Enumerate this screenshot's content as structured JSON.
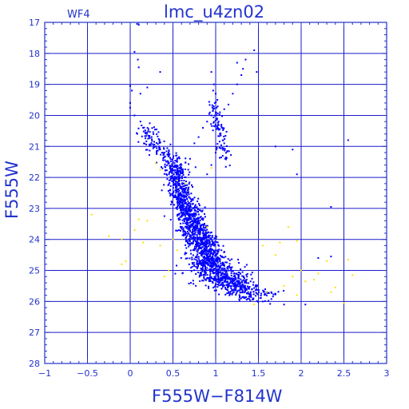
{
  "chart_data": {
    "type": "scatter",
    "title": "lmc_u4zn02",
    "subtitle": "WF4",
    "xlabel": "F555W−F814W",
    "ylabel": "F555W",
    "xlim": [
      -1,
      3
    ],
    "ylim": [
      28,
      17
    ],
    "y_inverted": true,
    "grid": true,
    "xticks": [
      -1,
      -0.5,
      0,
      0.5,
      1,
      1.5,
      2,
      2.5,
      3
    ],
    "xtick_labels": [
      "−1",
      "−0.5",
      "0",
      "0.5",
      "1",
      "1.5",
      "2",
      "2.5",
      "3"
    ],
    "yticks": [
      17,
      18,
      19,
      20,
      21,
      22,
      23,
      24,
      25,
      26,
      27,
      28
    ],
    "ytick_labels": [
      "17",
      "18",
      "19",
      "20",
      "21",
      "22",
      "23",
      "24",
      "25",
      "26",
      "27",
      "28"
    ],
    "colors": {
      "axes": "#2233cc",
      "grid": "#1a1acc",
      "main": "#0000ff",
      "secondary": "#ffe000"
    },
    "series": [
      {
        "color": "#0000ff",
        "points": [
          [
            0.08,
            17.05
          ],
          [
            0.1,
            17.08
          ],
          [
            0.05,
            17.95
          ],
          [
            0.09,
            18.2
          ],
          [
            0.1,
            18.45
          ],
          [
            0.0,
            19.05
          ],
          [
            0.02,
            19.2
          ],
          [
            0.12,
            19.3
          ],
          [
            0.2,
            19.1
          ],
          [
            0.35,
            18.6
          ],
          [
            0.95,
            18.6
          ],
          [
            0.98,
            19.0
          ],
          [
            0.97,
            19.2
          ],
          [
            1.0,
            19.3
          ],
          [
            1.02,
            19.5
          ],
          [
            0.99,
            19.6
          ],
          [
            1.01,
            19.75
          ],
          [
            1.05,
            19.9
          ],
          [
            1.1,
            19.8
          ],
          [
            1.15,
            19.65
          ],
          [
            1.2,
            19.3
          ],
          [
            1.25,
            19.0
          ],
          [
            1.3,
            18.7
          ],
          [
            1.32,
            18.5
          ],
          [
            1.35,
            18.2
          ],
          [
            1.25,
            18.3
          ],
          [
            1.45,
            17.9
          ],
          [
            1.48,
            18.6
          ],
          [
            0.0,
            19.6
          ],
          [
            0.0,
            19.75
          ],
          [
            0.05,
            20.0
          ],
          [
            0.12,
            20.2
          ],
          [
            0.15,
            20.4
          ],
          [
            0.2,
            20.55
          ],
          [
            0.25,
            20.7
          ],
          [
            0.28,
            20.85
          ],
          [
            0.3,
            21.0
          ],
          [
            0.35,
            21.1
          ],
          [
            0.4,
            21.2
          ],
          [
            0.45,
            21.3
          ],
          [
            0.55,
            21.5
          ],
          [
            0.6,
            21.6
          ],
          [
            0.7,
            21.4
          ],
          [
            0.75,
            20.9
          ],
          [
            0.8,
            20.7
          ],
          [
            0.85,
            20.4
          ],
          [
            0.9,
            20.2
          ],
          [
            0.95,
            20.0
          ],
          [
            1.0,
            20.3
          ],
          [
            1.05,
            20.6
          ],
          [
            1.1,
            20.9
          ],
          [
            1.0,
            21.2
          ],
          [
            0.95,
            21.6
          ],
          [
            0.9,
            21.9
          ],
          [
            1.9,
            21.1
          ],
          [
            1.95,
            21.9
          ],
          [
            2.55,
            20.8
          ],
          [
            2.35,
            22.95
          ],
          [
            1.7,
            21.0
          ],
          [
            0.4,
            23.25
          ],
          [
            1.55,
            26.0
          ],
          [
            1.8,
            26.1
          ],
          [
            2.05,
            26.1
          ],
          [
            2.2,
            24.6
          ],
          [
            2.35,
            24.55
          ],
          [
            1.65,
            25.7
          ]
        ],
        "cloud": {
          "description": "dense main-sequence region",
          "segments": [
            {
              "from": [
                0.52,
                21.6
              ],
              "to": [
                0.6,
                22.6
              ],
              "count": 260,
              "spread": [
                0.06,
                0.15
              ]
            },
            {
              "from": [
                0.6,
                22.6
              ],
              "to": [
                0.75,
                23.6
              ],
              "count": 380,
              "spread": [
                0.07,
                0.15
              ]
            },
            {
              "from": [
                0.72,
                23.6
              ],
              "to": [
                0.95,
                24.6
              ],
              "count": 450,
              "spread": [
                0.09,
                0.16
              ]
            },
            {
              "from": [
                0.85,
                24.6
              ],
              "to": [
                1.2,
                25.4
              ],
              "count": 420,
              "spread": [
                0.12,
                0.15
              ]
            },
            {
              "from": [
                1.0,
                25.2
              ],
              "to": [
                1.5,
                25.9
              ],
              "count": 280,
              "spread": [
                0.14,
                0.12
              ]
            },
            {
              "from": [
                0.15,
                20.4
              ],
              "to": [
                0.55,
                21.8
              ],
              "count": 140,
              "spread": [
                0.07,
                0.12
              ]
            },
            {
              "from": [
                0.95,
                19.6
              ],
              "to": [
                1.15,
                21.5
              ],
              "count": 90,
              "spread": [
                0.03,
                0.2
              ]
            }
          ]
        }
      },
      {
        "color": "#ffe000",
        "points": [
          [
            -0.45,
            23.2
          ],
          [
            -0.25,
            23.9
          ],
          [
            -0.1,
            24.0
          ],
          [
            0.05,
            23.7
          ],
          [
            0.1,
            23.35
          ],
          [
            0.2,
            23.4
          ],
          [
            0.15,
            24.1
          ],
          [
            -0.05,
            24.7
          ],
          [
            -0.1,
            24.8
          ],
          [
            0.35,
            24.2
          ],
          [
            0.5,
            24.0
          ],
          [
            0.55,
            24.35
          ],
          [
            1.55,
            24.2
          ],
          [
            1.7,
            24.5
          ],
          [
            1.75,
            24.1
          ],
          [
            1.85,
            23.6
          ],
          [
            1.95,
            24.05
          ],
          [
            2.0,
            25.0
          ],
          [
            2.05,
            25.35
          ],
          [
            2.2,
            25.1
          ],
          [
            2.3,
            24.7
          ],
          [
            2.35,
            25.7
          ],
          [
            2.55,
            24.65
          ],
          [
            2.6,
            25.15
          ],
          [
            2.5,
            26.05
          ],
          [
            1.6,
            25.7
          ],
          [
            1.8,
            25.5
          ],
          [
            1.9,
            25.2
          ],
          [
            1.95,
            25.8
          ],
          [
            0.3,
            21.55
          ],
          [
            0.35,
            21.75
          ],
          [
            0.55,
            22.1
          ],
          [
            0.65,
            22.2
          ],
          [
            0.95,
            21.7
          ],
          [
            0.9,
            23.6
          ],
          [
            0.45,
            25.0
          ],
          [
            0.4,
            25.2
          ],
          [
            2.4,
            25.55
          ],
          [
            2.15,
            25.3
          ],
          [
            1.45,
            26.1
          ]
        ]
      }
    ]
  },
  "plot": {
    "title": "lmc_u4zn02",
    "wf": "WF4",
    "xlabel": "F555W−F814W",
    "ylabel": "F555W"
  }
}
